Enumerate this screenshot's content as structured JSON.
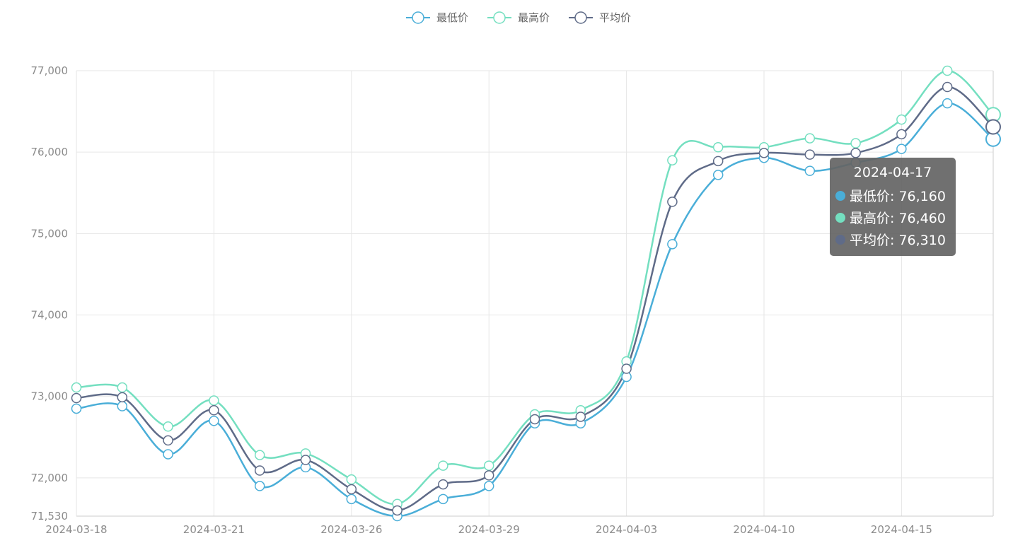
{
  "chart_data": {
    "type": "line",
    "smooth": true,
    "x": [
      "2024-03-18",
      "2024-03-19",
      "2024-03-20",
      "2024-03-21",
      "2024-03-22",
      "2024-03-25",
      "2024-03-26",
      "2024-03-27",
      "2024-03-28",
      "2024-03-29",
      "2024-04-01",
      "2024-04-02",
      "2024-04-03",
      "2024-04-08",
      "2024-04-09",
      "2024-04-10",
      "2024-04-11",
      "2024-04-12",
      "2024-04-15",
      "2024-04-16",
      "2024-04-17"
    ],
    "x_tick_labels": [
      "2024-03-18",
      "2024-03-21",
      "2024-03-26",
      "2024-03-29",
      "2024-04-03",
      "2024-04-10",
      "2024-04-15"
    ],
    "y_tick_labels": [
      "71,530",
      "72,000",
      "73,000",
      "74,000",
      "75,000",
      "76,000",
      "77,000"
    ],
    "ylim": [
      71530,
      77000
    ],
    "grid": true,
    "legend_position": "top-center",
    "series": [
      {
        "name": "最低价",
        "color": "#4aaed8",
        "values": [
          72850,
          72880,
          72290,
          72700,
          71900,
          72130,
          71740,
          71530,
          71740,
          71900,
          72670,
          72670,
          73240,
          74870,
          75720,
          75930,
          75770,
          75870,
          76040,
          76600,
          76160
        ]
      },
      {
        "name": "最高价",
        "color": "#74dfc0",
        "values": [
          73110,
          73110,
          72630,
          72950,
          72280,
          72300,
          71980,
          71680,
          72150,
          72150,
          72780,
          72830,
          73430,
          75900,
          76060,
          76060,
          76170,
          76110,
          76400,
          77000,
          76460
        ]
      },
      {
        "name": "平均价",
        "color": "#5f6b88",
        "values": [
          72980,
          72990,
          72460,
          72830,
          72090,
          72220,
          71860,
          71600,
          71920,
          72030,
          72720,
          72750,
          73340,
          75390,
          75890,
          75990,
          75970,
          75990,
          76220,
          76800,
          76310
        ]
      }
    ],
    "tooltip": {
      "title": "2024-04-17",
      "rows": [
        {
          "label": "最低价: 76,160",
          "color": "#4aaed8"
        },
        {
          "label": "最高价: 76,460",
          "color": "#74dfc0"
        },
        {
          "label": "平均价: 76,310",
          "color": "#5f6b88"
        }
      ]
    }
  }
}
